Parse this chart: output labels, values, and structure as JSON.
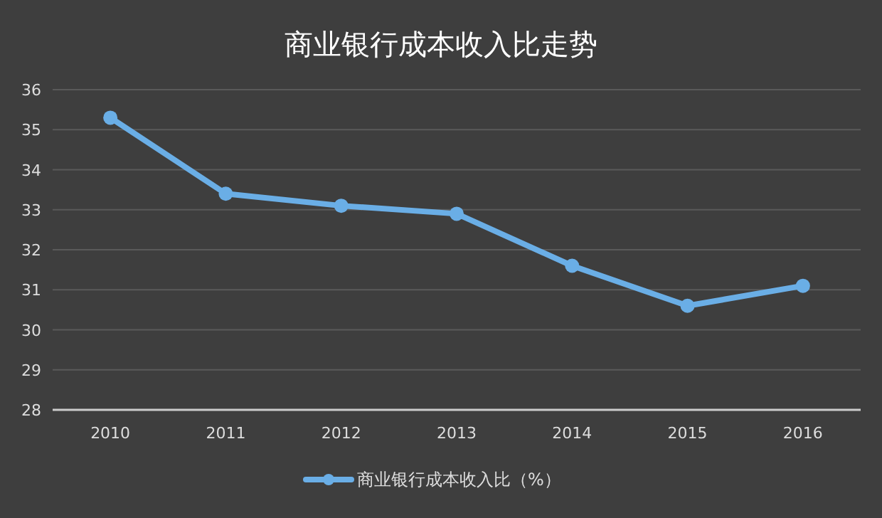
{
  "chart_data": {
    "type": "line",
    "title": "商业银行成本收入比走势",
    "categories": [
      "2010",
      "2011",
      "2012",
      "2013",
      "2014",
      "2015",
      "2016"
    ],
    "series": [
      {
        "name": "商业银行成本收入比（%）",
        "color": "#6aaee6",
        "values": [
          35.3,
          33.4,
          33.1,
          32.9,
          31.6,
          30.6,
          31.1
        ]
      }
    ],
    "ylim": [
      28,
      36
    ],
    "yticks": [
      28,
      29,
      30,
      31,
      32,
      33,
      34,
      35,
      36
    ],
    "grid": "y",
    "legend": "bottom",
    "marker": "circle",
    "line_style": "solid"
  }
}
